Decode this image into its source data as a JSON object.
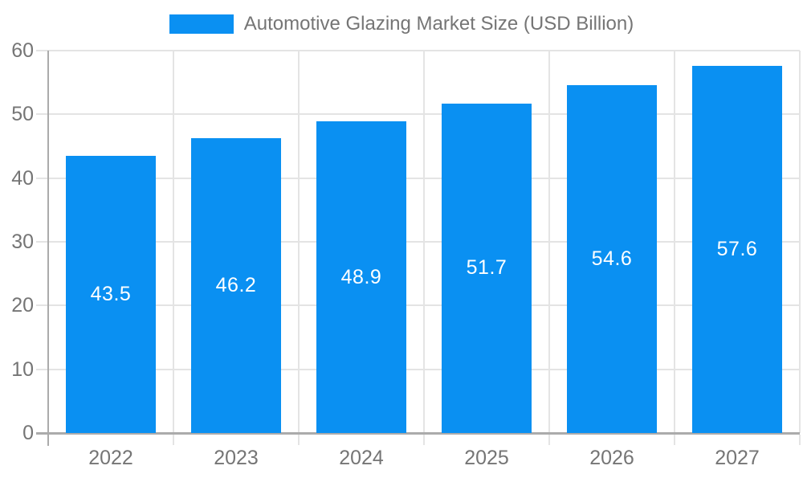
{
  "chart_data": {
    "type": "bar",
    "title": "Automotive Glazing Market Size (USD Billion)",
    "legend_position": "top",
    "categories": [
      "2022",
      "2023",
      "2024",
      "2025",
      "2026",
      "2027"
    ],
    "series": [
      {
        "name": "Automotive Glazing Market Size (USD Billion)",
        "values": [
          43.5,
          46.2,
          48.9,
          51.7,
          54.6,
          57.6
        ]
      }
    ],
    "value_labels": [
      "43.5",
      "46.2",
      "48.9",
      "51.7",
      "54.6",
      "57.6"
    ],
    "xlabel": "",
    "ylabel": "",
    "ylim": [
      0,
      60
    ],
    "yticks": [
      0,
      10,
      20,
      30,
      40,
      50,
      60
    ],
    "grid": true,
    "colors": {
      "bar": "#0a90f2",
      "value_label_text": "#ffffff",
      "axis_text": "#757575",
      "legend_text": "#757575",
      "gridline": "#e4e4e4",
      "axis_line": "#ababab",
      "background": "#ffffff"
    }
  }
}
